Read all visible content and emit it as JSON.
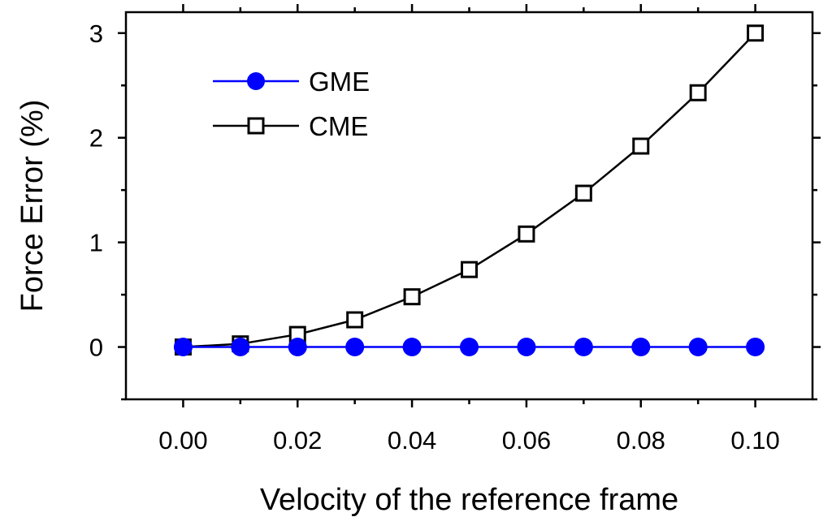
{
  "chart_data": {
    "type": "line",
    "title": "",
    "xlabel": "Velocity of the reference frame",
    "ylabel": "Force Error (%)",
    "xlim": [
      -0.01,
      0.11
    ],
    "ylim": [
      -0.5,
      3.2
    ],
    "xticks": [
      0.0,
      0.02,
      0.04,
      0.06,
      0.08,
      0.1
    ],
    "xtick_labels": [
      "0.00",
      "0.02",
      "0.04",
      "0.06",
      "0.08",
      "0.10"
    ],
    "yticks": [
      0,
      1,
      2,
      3
    ],
    "ytick_labels": [
      "0",
      "1",
      "2",
      "3"
    ],
    "grid": false,
    "legend_position": "top-left",
    "x": [
      0.0,
      0.01,
      0.02,
      0.03,
      0.04,
      0.05,
      0.06,
      0.07,
      0.08,
      0.09,
      0.1
    ],
    "series": [
      {
        "name": "GME",
        "marker": "filled-circle",
        "color": "#0000ff",
        "values": [
          0,
          0,
          0,
          0,
          0,
          0,
          0,
          0,
          0,
          0,
          0
        ]
      },
      {
        "name": "CME",
        "marker": "open-square",
        "color": "#000000",
        "values": [
          0,
          0.03,
          0.12,
          0.26,
          0.48,
          0.74,
          1.08,
          1.47,
          1.92,
          2.43,
          3.0
        ]
      }
    ]
  }
}
